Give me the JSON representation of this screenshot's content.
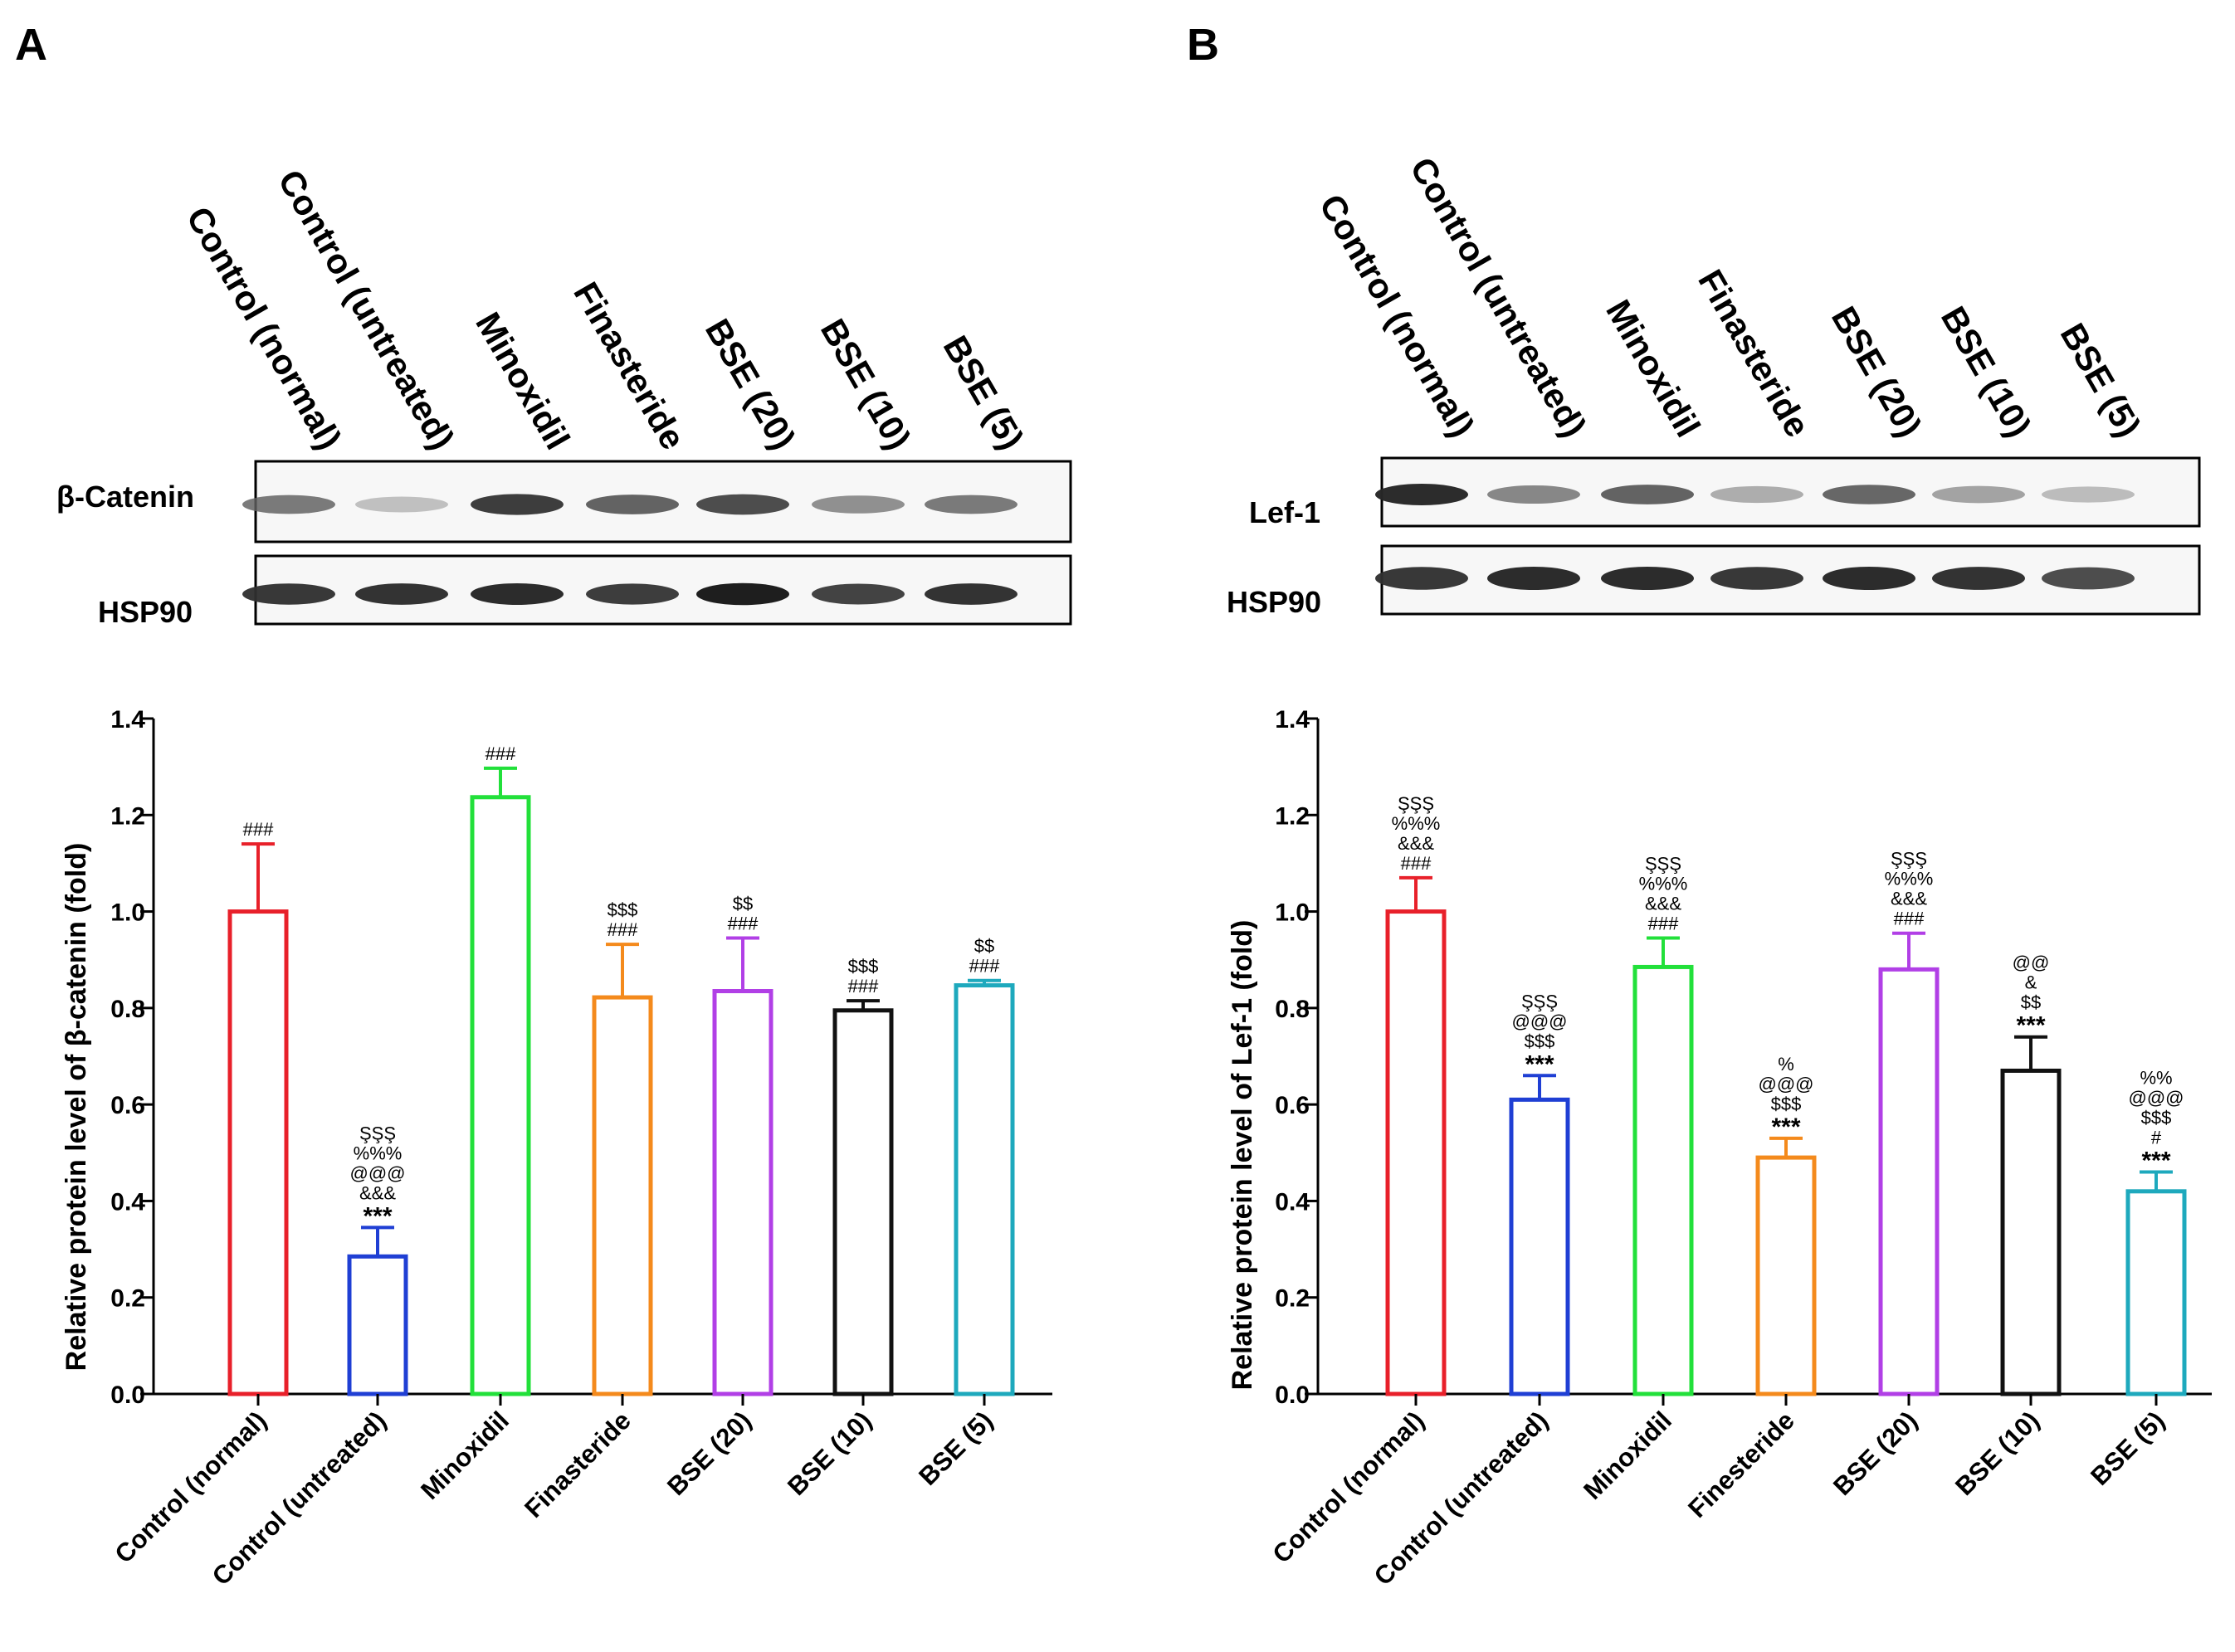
{
  "panels": [
    {
      "panel_label": "A",
      "blot": {
        "lane_labels": [
          "Control (normal)",
          "Control (untreated)",
          "Minoxidil",
          "Finasteride",
          "BSE (20)",
          "BSE (10)",
          "BSE (5)"
        ],
        "rows": [
          {
            "label": "β-Catenin",
            "intensities": [
              0.62,
              0.22,
              0.88,
              0.72,
              0.82,
              0.5,
              0.62
            ]
          },
          {
            "label": "HSP90",
            "intensities": [
              0.9,
              0.92,
              0.95,
              0.88,
              1.0,
              0.86,
              0.92
            ]
          }
        ]
      },
      "chart_data": {
        "type": "bar",
        "title": "",
        "xlabel": "",
        "ylabel": "Relative protein level of β-catenin (fold)",
        "ylim": [
          0,
          1.4
        ],
        "yticks": [
          "0.0",
          "0.2",
          "0.4",
          "0.6",
          "0.8",
          "1.0",
          "1.2",
          "1.4"
        ],
        "categories": [
          "Control (normal)",
          "Control (untreated)",
          "Minoxidil",
          "Finasteride",
          "BSE (20)",
          "BSE (10)",
          "BSE (5)"
        ],
        "values": [
          1.0,
          0.285,
          1.237,
          0.822,
          0.835,
          0.795,
          0.847
        ],
        "errors": [
          0.14,
          0.06,
          0.06,
          0.11,
          0.11,
          0.02,
          0.01
        ],
        "colors": [
          "#e8202a",
          "#1f3fd4",
          "#22e03a",
          "#f48a1c",
          "#b13fe6",
          "#111111",
          "#1ea9bd"
        ],
        "annotations": [
          [
            "###"
          ],
          [
            "ŞŞŞ",
            "%%%",
            "@@@",
            "&&&",
            "***"
          ],
          [
            "###"
          ],
          [
            "$$$",
            "###"
          ],
          [
            "$$",
            "###"
          ],
          [
            "$$$",
            "###"
          ],
          [
            "$$",
            "###"
          ]
        ]
      }
    },
    {
      "panel_label": "B",
      "blot": {
        "lane_labels": [
          "Control (normal)",
          "Control (untreated)",
          "Minoxidil",
          "Finasteride",
          "BSE (20)",
          "BSE (10)",
          "BSE (5)"
        ],
        "rows": [
          {
            "label": "Lef-1",
            "intensities": [
              0.95,
              0.55,
              0.72,
              0.35,
              0.7,
              0.4,
              0.25
            ]
          },
          {
            "label": "HSP90",
            "intensities": [
              0.9,
              0.95,
              0.95,
              0.9,
              0.95,
              0.92,
              0.82
            ]
          }
        ]
      },
      "chart_data": {
        "type": "bar",
        "title": "",
        "xlabel": "",
        "ylabel": "Relative protein level of Lef-1 (fold)",
        "ylim": [
          0,
          1.4
        ],
        "yticks": [
          "0.0",
          "0.2",
          "0.4",
          "0.6",
          "0.8",
          "1.0",
          "1.2",
          "1.4"
        ],
        "categories": [
          "Control (normal)",
          "Control (untreated)",
          "Minoxidil",
          "Finesteride",
          "BSE (20)",
          "BSE (10)",
          "BSE (5)"
        ],
        "values": [
          1.0,
          0.61,
          0.885,
          0.49,
          0.88,
          0.67,
          0.42
        ],
        "errors": [
          0.07,
          0.05,
          0.06,
          0.04,
          0.075,
          0.07,
          0.04
        ],
        "colors": [
          "#e8202a",
          "#1f3fd4",
          "#22e03a",
          "#f48a1c",
          "#b13fe6",
          "#111111",
          "#1ea9bd"
        ],
        "annotations": [
          [
            "ŞŞŞ",
            "%%%",
            "&&&",
            "###"
          ],
          [
            "ŞŞŞ",
            "@@@",
            "$$$",
            "***"
          ],
          [
            "ŞŞŞ",
            "%%%",
            "&&&",
            "###"
          ],
          [
            "%",
            "@@@",
            "$$$",
            "***"
          ],
          [
            "ŞŞŞ",
            "%%%",
            "&&&",
            "###"
          ],
          [
            "@@",
            "&",
            "$$",
            "***"
          ],
          [
            "%%",
            "@@@",
            "$$$",
            "#",
            "***"
          ]
        ]
      }
    }
  ]
}
